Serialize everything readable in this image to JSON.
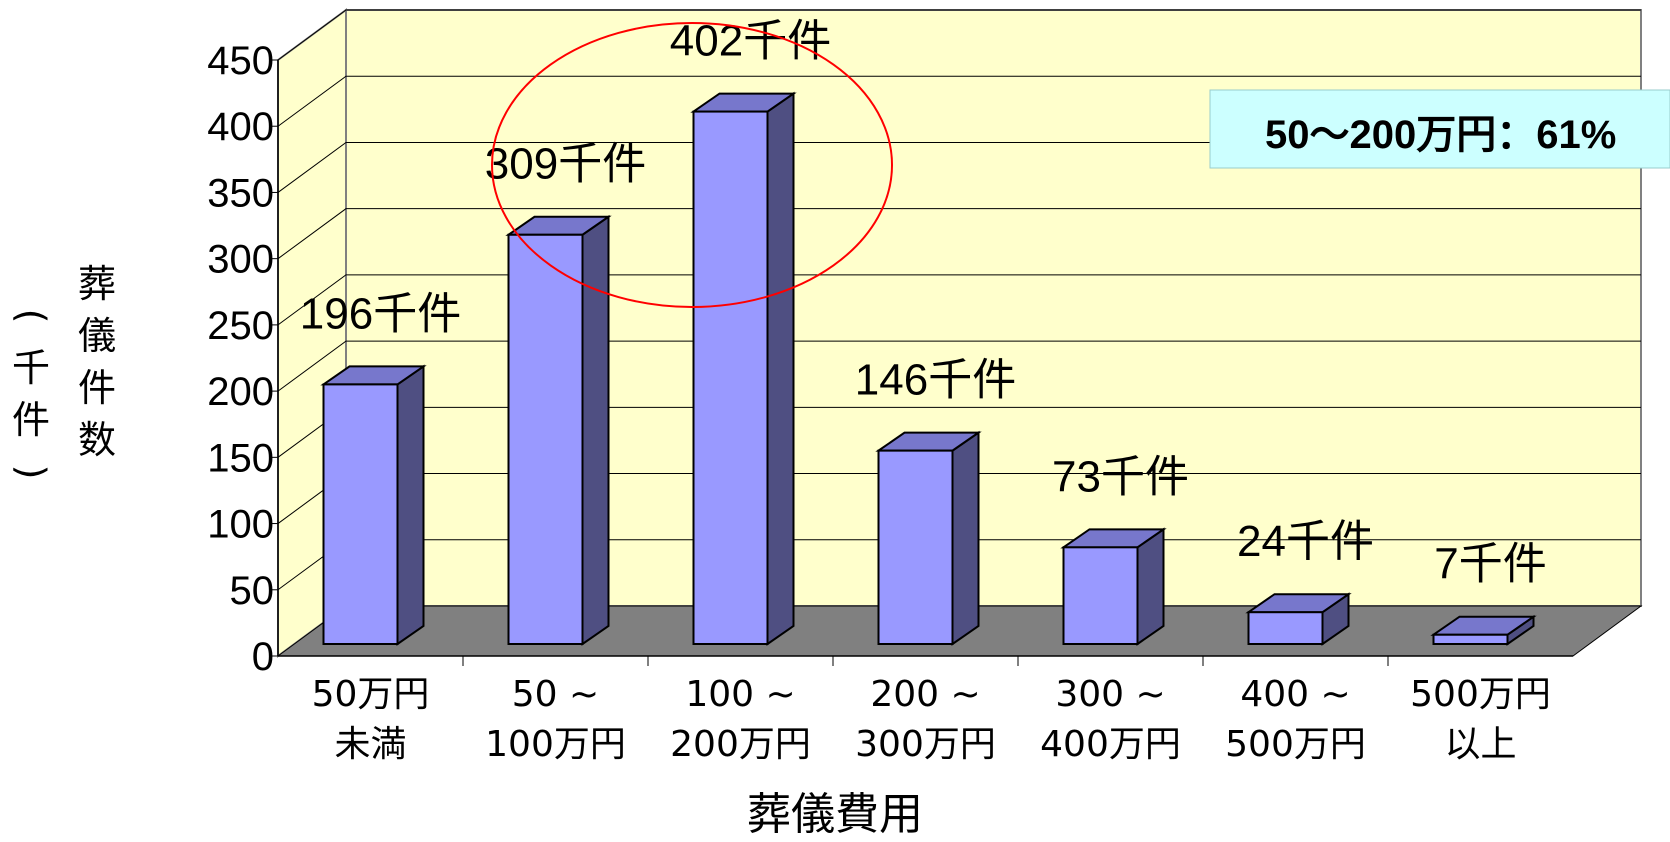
{
  "chart_data": {
    "type": "bar",
    "style": "3d",
    "categories": [
      [
        "50万円",
        "未満"
      ],
      [
        "50 ~",
        "100万円"
      ],
      [
        "100 ~",
        "200万円"
      ],
      [
        "200 ~",
        "300万円"
      ],
      [
        "300 ~",
        "400万円"
      ],
      [
        "400 ~",
        "500万円"
      ],
      [
        "500万円",
        "以上"
      ]
    ],
    "values": [
      196,
      309,
      402,
      146,
      73,
      24,
      7
    ],
    "data_labels": [
      "196千件",
      "309千件",
      "402千件",
      "146千件",
      "73千件",
      "24千件",
      "7千件"
    ],
    "xlabel": "葬儀費用",
    "ylabel_main": [
      "葬",
      "儀",
      "件",
      "数"
    ],
    "ylabel_unit": [
      "(",
      "千",
      "件",
      ")"
    ],
    "ylim": [
      0,
      450
    ],
    "yticks": [
      0,
      50,
      100,
      150,
      200,
      250,
      300,
      350,
      400,
      450
    ],
    "grid": true,
    "annotation": "50～200万円：61%",
    "highlight": "categories 2-3 circled in red",
    "colors": {
      "bar_front": "#9999ff",
      "bar_side": "#4f4f82",
      "bar_top": "#7777cc",
      "wall": "#ffffcc",
      "floor": "#808080",
      "grid": "#000000",
      "annotation_bg": "#ccffff",
      "highlight_ellipse": "#ff0000"
    }
  }
}
